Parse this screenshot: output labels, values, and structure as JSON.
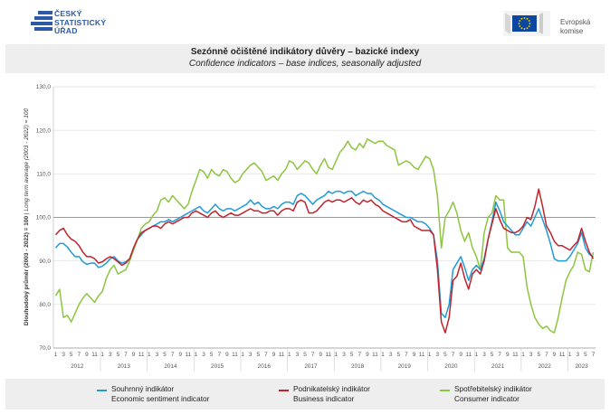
{
  "header": {
    "csu_logo_lines": [
      "ČESKÝ",
      "STATISTICKÝ",
      "ÚŘAD"
    ],
    "eu_logo_lines": [
      "Evropská",
      "komise"
    ]
  },
  "chart_data": {
    "type": "line",
    "title": "Sezónně očištěné indikátory důvěry – bazické indexy",
    "subtitle": "Confidence indicators – base indices, seasonally adjusted",
    "ylabel_cs": "Dlouhodobý průměr (2003 - 2022) = 100",
    "ylabel_en": "Long term average (2003 - 2022) = 100",
    "ylim": [
      70,
      130
    ],
    "yticks": [
      "130,0",
      "120,0",
      "110,0",
      "100,0",
      "90,0",
      "80,0",
      "70,0"
    ],
    "month_ticks": [
      "1",
      "3",
      "5",
      "7",
      "9",
      "11"
    ],
    "years": [
      "2012",
      "2013",
      "2014",
      "2015",
      "2016",
      "2017",
      "2018",
      "2019",
      "2020",
      "2021",
      "2022",
      "2023"
    ],
    "last_year_months": [
      "1",
      "3",
      "5",
      "7"
    ],
    "series": [
      {
        "name": "Souhrnný indikátor",
        "name_en": "Economic sentiment indicator",
        "color": "#1f9bd7",
        "values": [
          93.0,
          94.0,
          94.0,
          93.2,
          92.0,
          91.0,
          91.0,
          89.8,
          89.2,
          89.5,
          89.5,
          88.5,
          88.8,
          89.5,
          90.5,
          91.0,
          90.0,
          89.5,
          89.8,
          90.5,
          93.0,
          95.0,
          96.0,
          97.0,
          97.5,
          98.0,
          98.5,
          99.0,
          99.0,
          99.5,
          99.0,
          99.5,
          100.0,
          100.5,
          101.0,
          101.5,
          102.0,
          102.5,
          101.5,
          101.0,
          102.0,
          103.0,
          102.0,
          101.5,
          102.0,
          102.0,
          101.5,
          102.0,
          102.5,
          103.0,
          104.0,
          103.0,
          103.5,
          102.5,
          102.0,
          102.0,
          102.5,
          102.0,
          103.0,
          103.5,
          103.5,
          103.0,
          105.0,
          105.5,
          105.0,
          104.0,
          103.0,
          104.0,
          104.5,
          105.0,
          106.0,
          105.5,
          106.0,
          106.0,
          105.5,
          106.0,
          106.0,
          105.0,
          105.5,
          106.0,
          105.5,
          105.5,
          104.5,
          104.0,
          103.0,
          102.5,
          102.0,
          101.5,
          101.0,
          100.5,
          100.0,
          100.0,
          99.5,
          99.0,
          99.0,
          98.5,
          97.5,
          96.0,
          90.0,
          78.0,
          77.0,
          80.0,
          88.0,
          89.5,
          91.0,
          88.5,
          85.5,
          88.0,
          89.0,
          88.0,
          90.5,
          95.0,
          99.0,
          103.5,
          101.5,
          99.0,
          98.0,
          97.0,
          96.0,
          96.0,
          97.5,
          99.0,
          98.0,
          100.0,
          102.0,
          99.5,
          97.0,
          94.0,
          90.5,
          90.0,
          90.0,
          90.0,
          91.0,
          92.5,
          94.0,
          96.5,
          93.0,
          91.5,
          91.0
        ]
      },
      {
        "name": "Podnikatelský indikátor",
        "name_en": "Business indicator",
        "color": "#c0232e",
        "values": [
          96.0,
          97.0,
          97.5,
          96.0,
          95.0,
          94.5,
          93.5,
          92.0,
          91.0,
          91.0,
          90.5,
          89.5,
          89.8,
          90.5,
          91.0,
          90.5,
          89.8,
          89.0,
          89.5,
          90.5,
          93.0,
          95.0,
          96.5,
          97.0,
          97.5,
          98.0,
          98.0,
          97.5,
          98.5,
          99.0,
          98.5,
          99.0,
          99.5,
          100.0,
          100.0,
          101.0,
          101.5,
          101.0,
          100.5,
          100.0,
          101.0,
          101.5,
          100.5,
          100.0,
          100.5,
          101.0,
          100.5,
          100.5,
          101.0,
          101.5,
          102.0,
          101.5,
          101.5,
          101.0,
          101.0,
          101.5,
          101.5,
          100.5,
          101.5,
          102.0,
          102.0,
          101.5,
          103.5,
          104.0,
          103.5,
          101.0,
          101.0,
          101.5,
          102.5,
          103.5,
          104.0,
          103.5,
          104.0,
          104.0,
          103.5,
          104.0,
          104.5,
          103.5,
          103.0,
          104.0,
          103.5,
          104.0,
          103.0,
          102.5,
          101.5,
          101.0,
          100.5,
          100.0,
          99.5,
          99.0,
          99.0,
          99.5,
          98.0,
          97.5,
          97.0,
          97.0,
          97.0,
          96.0,
          88.0,
          76.0,
          73.5,
          77.0,
          85.5,
          86.5,
          89.5,
          86.0,
          83.5,
          87.0,
          88.0,
          87.0,
          90.0,
          95.0,
          98.5,
          102.0,
          99.5,
          97.5,
          97.0,
          96.5,
          96.5,
          97.0,
          98.0,
          100.0,
          99.5,
          102.5,
          106.5,
          102.5,
          98.0,
          96.5,
          94.5,
          93.5,
          93.5,
          93.0,
          92.5,
          93.5,
          94.5,
          97.5,
          94.5,
          92.0,
          90.5
        ]
      },
      {
        "name": "Spotřebitelský indikátor",
        "name_en": "Consumer indicator",
        "color": "#8cc63f",
        "values": [
          82.0,
          83.5,
          77.0,
          77.5,
          76.0,
          78.0,
          80.0,
          81.5,
          82.5,
          81.5,
          80.5,
          82.0,
          83.0,
          86.0,
          88.0,
          89.0,
          87.0,
          87.5,
          88.0,
          90.0,
          92.5,
          95.0,
          97.5,
          98.5,
          99.0,
          100.5,
          101.5,
          104.0,
          104.5,
          103.5,
          105.0,
          104.0,
          103.0,
          102.0,
          103.0,
          106.0,
          108.5,
          111.0,
          110.5,
          109.0,
          111.0,
          110.0,
          109.5,
          111.0,
          110.5,
          109.0,
          108.0,
          108.5,
          110.0,
          111.0,
          112.0,
          112.5,
          111.5,
          110.5,
          108.5,
          109.0,
          109.5,
          108.5,
          110.0,
          111.0,
          113.0,
          112.5,
          111.0,
          112.0,
          113.0,
          112.5,
          111.0,
          110.0,
          112.0,
          113.5,
          111.5,
          111.0,
          113.0,
          115.0,
          116.0,
          117.5,
          116.0,
          115.5,
          117.0,
          116.0,
          118.0,
          117.5,
          117.0,
          117.5,
          117.5,
          116.5,
          116.0,
          115.5,
          112.0,
          112.5,
          113.0,
          112.5,
          111.5,
          111.0,
          112.5,
          114.0,
          113.5,
          111.0,
          105.0,
          93.0,
          100.0,
          101.5,
          103.5,
          101.0,
          97.0,
          94.5,
          96.5,
          93.0,
          91.0,
          88.0,
          96.5,
          100.0,
          101.0,
          105.0,
          104.0,
          104.0,
          93.0,
          92.0,
          92.0,
          92.0,
          91.0,
          84.0,
          80.0,
          77.0,
          75.5,
          74.5,
          75.0,
          74.0,
          73.5,
          77.0,
          81.5,
          85.5,
          87.5,
          89.0,
          92.0,
          91.5,
          88.0,
          87.5,
          92.0
        ]
      }
    ]
  }
}
